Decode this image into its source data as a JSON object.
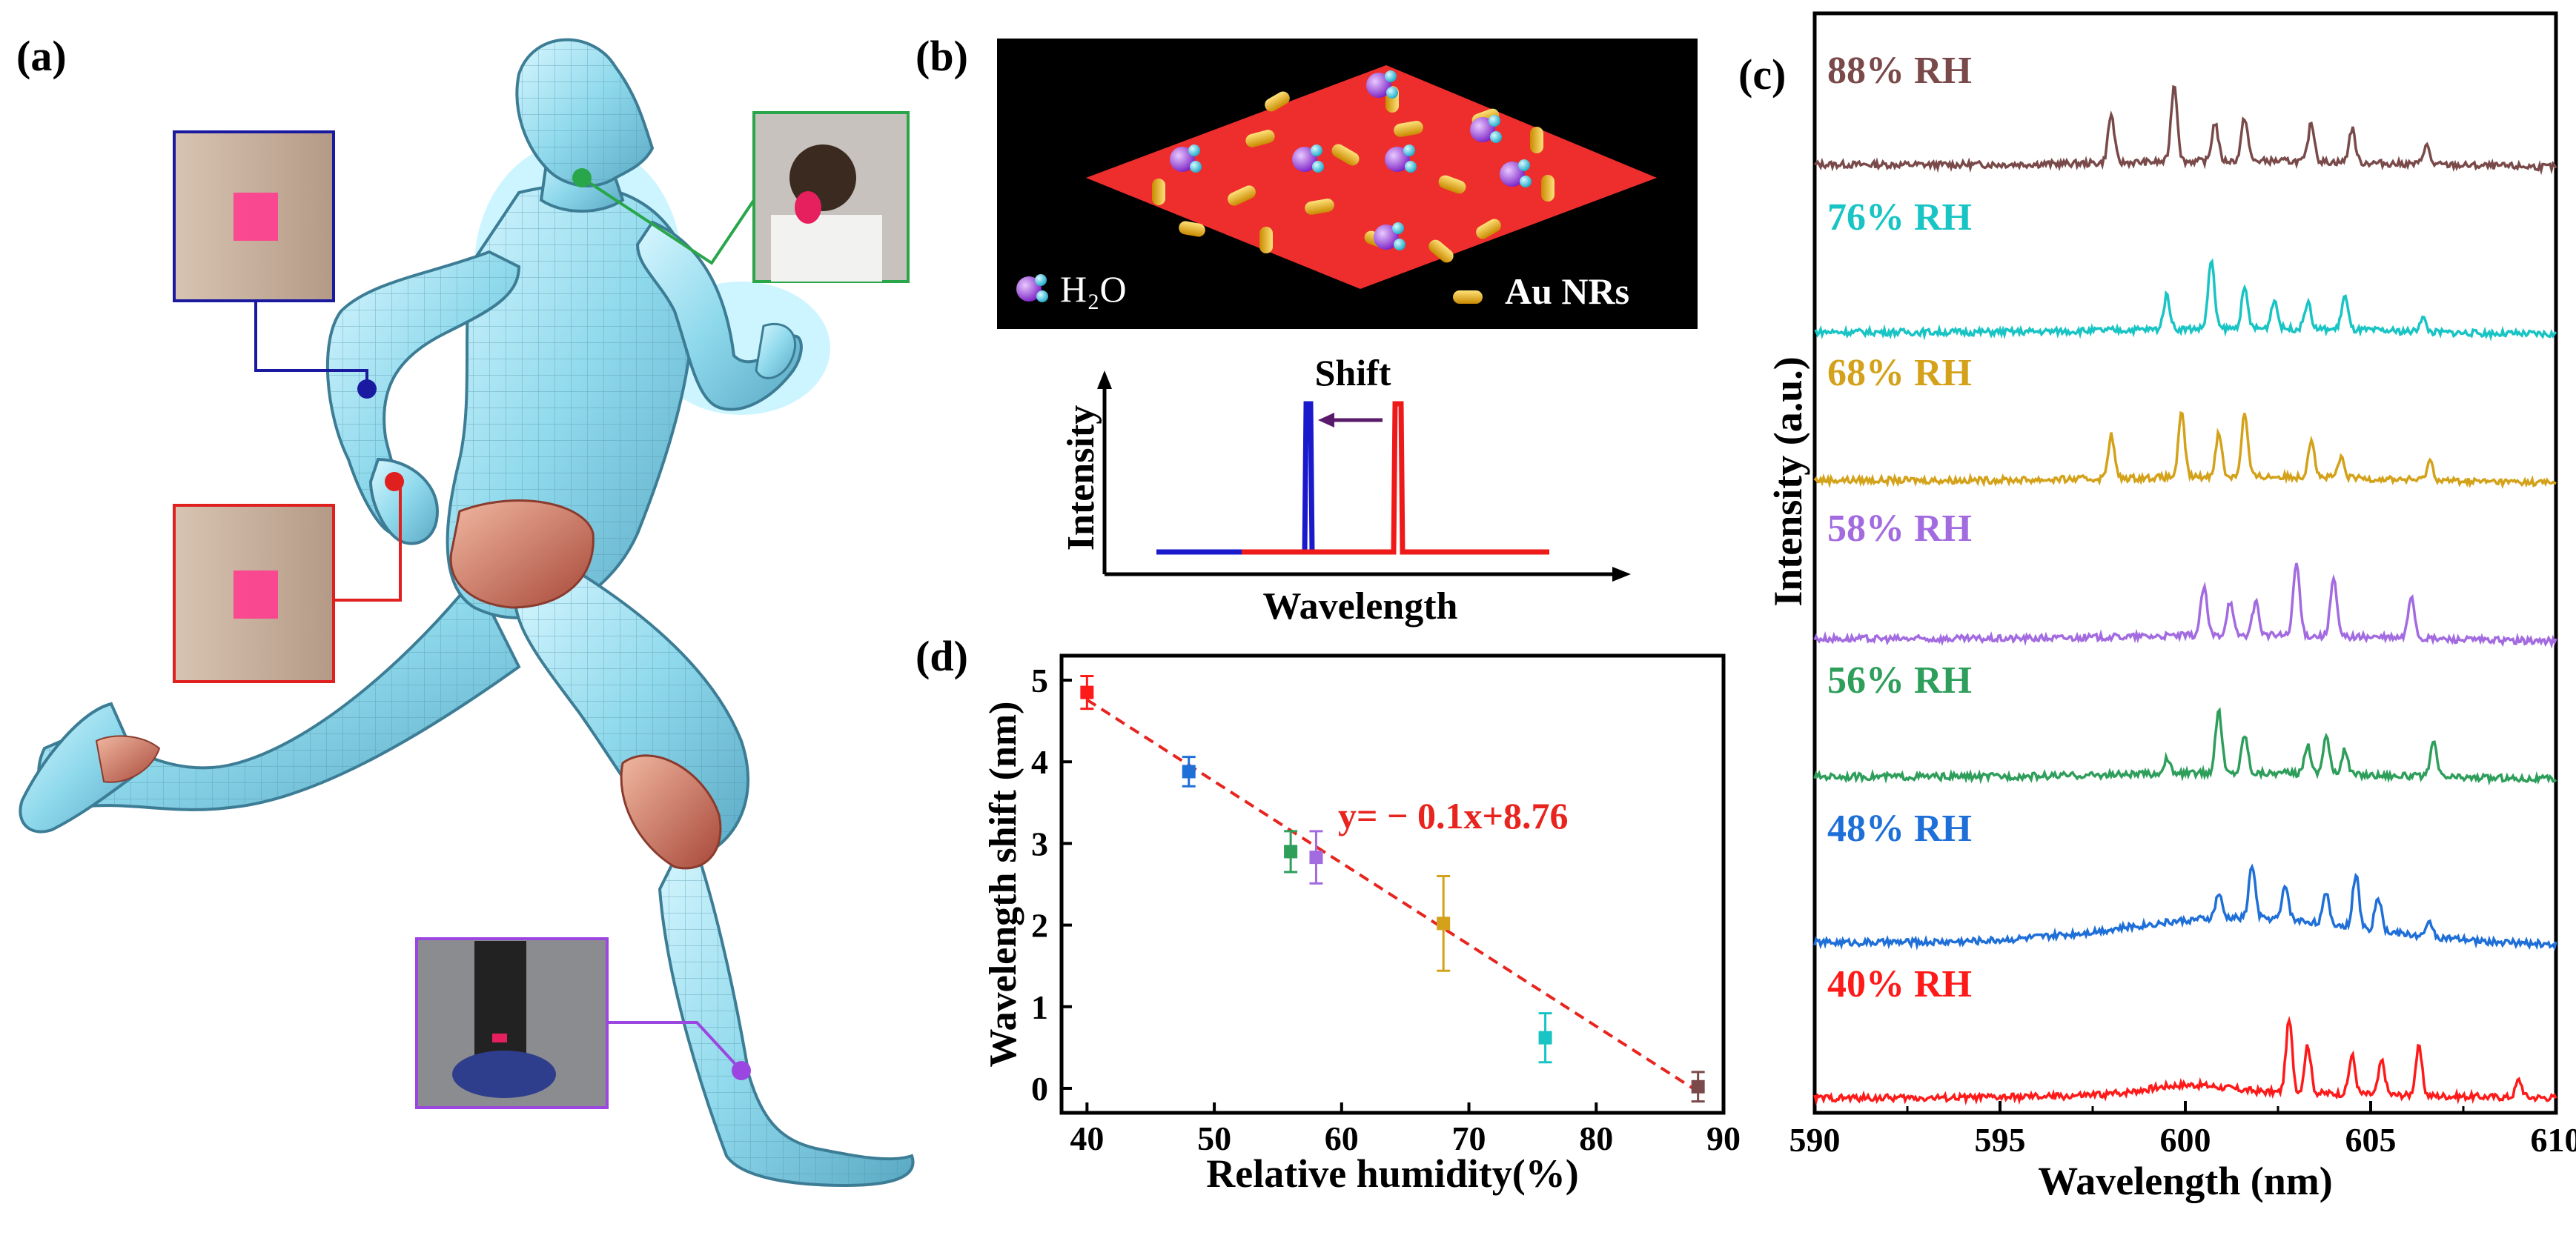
{
  "panel_labels": {
    "a": "(a)",
    "b": "(b)",
    "c": "(c)",
    "d": "(d)"
  },
  "panel_b": {
    "legend_h2o": "H₂O",
    "legend_au": "Au NRs",
    "schematic": {
      "shift_label": "Shift",
      "ylabel": "Intensity",
      "xlabel": "Wavelength"
    }
  },
  "colors": {
    "red": "#ff1a1a",
    "blue": "#1f6fd8",
    "green": "#2e9e5b",
    "purple": "#a36be0",
    "gold": "#d4a21a",
    "cyan": "#18c4c4",
    "brown": "#7a4a4a",
    "fit": "#e8241e",
    "inset_blue": "#1a1aa0",
    "inset_red": "#e0201e",
    "inset_green": "#2aa64a",
    "inset_purple": "#9b46e0",
    "pad": "#ff3d8f"
  },
  "chart_data": [
    {
      "id": "c",
      "type": "line",
      "xlabel": "Wavelength (nm)",
      "ylabel": "Intensity (a.u.)",
      "xlim": [
        590,
        610
      ],
      "xticks": [
        590,
        595,
        600,
        605,
        610
      ],
      "series": [
        {
          "name": "88% RH",
          "peaks": [
            [
              598.0,
              5
            ],
            [
              599.7,
              8
            ],
            [
              600.8,
              4
            ],
            [
              601.6,
              4.5
            ],
            [
              603.4,
              4
            ],
            [
              604.5,
              3.5
            ],
            [
              606.5,
              2
            ]
          ]
        },
        {
          "name": "76% RH",
          "peaks": [
            [
              599.5,
              3.5
            ],
            [
              600.7,
              7
            ],
            [
              601.6,
              4
            ],
            [
              602.4,
              3
            ],
            [
              603.3,
              2.8
            ],
            [
              604.3,
              3.5
            ],
            [
              606.4,
              1.5
            ]
          ]
        },
        {
          "name": "68% RH",
          "peaks": [
            [
              598.0,
              4.5
            ],
            [
              599.9,
              6.5
            ],
            [
              600.9,
              4.5
            ],
            [
              601.6,
              6.5
            ],
            [
              603.4,
              4
            ],
            [
              604.2,
              2
            ],
            [
              606.6,
              2
            ]
          ]
        },
        {
          "name": "58% RH",
          "peaks": [
            [
              600.5,
              5
            ],
            [
              601.2,
              3.5
            ],
            [
              601.9,
              3.5
            ],
            [
              603.0,
              7.5
            ],
            [
              604.0,
              6
            ],
            [
              606.1,
              4.5
            ]
          ]
        },
        {
          "name": "56% RH",
          "peaks": [
            [
              599.5,
              1.5
            ],
            [
              600.9,
              6.5
            ],
            [
              601.6,
              4
            ],
            [
              603.3,
              3
            ],
            [
              603.8,
              4
            ],
            [
              604.3,
              2.5
            ],
            [
              606.7,
              3.5
            ]
          ]
        },
        {
          "name": "48% RH",
          "peaks": [
            [
              600.9,
              2.5
            ],
            [
              601.8,
              5.5
            ],
            [
              602.7,
              3.5
            ],
            [
              603.8,
              3
            ],
            [
              604.6,
              5.5
            ],
            [
              605.2,
              3.5
            ],
            [
              606.6,
              1.5
            ]
          ]
        },
        {
          "name": "40% RH",
          "peaks": [
            [
              602.8,
              7.5
            ],
            [
              603.3,
              5
            ],
            [
              604.5,
              4
            ],
            [
              605.3,
              3.5
            ],
            [
              606.3,
              5
            ],
            [
              609.0,
              1.8
            ]
          ]
        }
      ]
    },
    {
      "id": "d",
      "type": "scatter",
      "xlabel": "Relative humidity(%)",
      "ylabel": "Wavelength shift (nm)",
      "xlim": [
        38,
        90
      ],
      "ylim": [
        -0.3,
        5.3
      ],
      "xticks": [
        40,
        50,
        60,
        70,
        80,
        90
      ],
      "yticks": [
        0,
        1,
        2,
        3,
        4,
        5
      ],
      "points": [
        {
          "x": 40,
          "y": 4.85,
          "err": 0.2
        },
        {
          "x": 48,
          "y": 3.88,
          "err": 0.18
        },
        {
          "x": 56,
          "y": 2.9,
          "err": 0.25
        },
        {
          "x": 58,
          "y": 2.83,
          "err": 0.32
        },
        {
          "x": 68,
          "y": 2.02,
          "err": 0.58
        },
        {
          "x": 76,
          "y": 0.62,
          "err": 0.3
        },
        {
          "x": 88,
          "y": 0.02,
          "err": 0.18
        }
      ],
      "fit": {
        "slope": -0.1,
        "intercept": 8.76,
        "x_range": [
          40,
          88
        ]
      },
      "annotation": "y=  − 0.1x+8.76"
    }
  ]
}
